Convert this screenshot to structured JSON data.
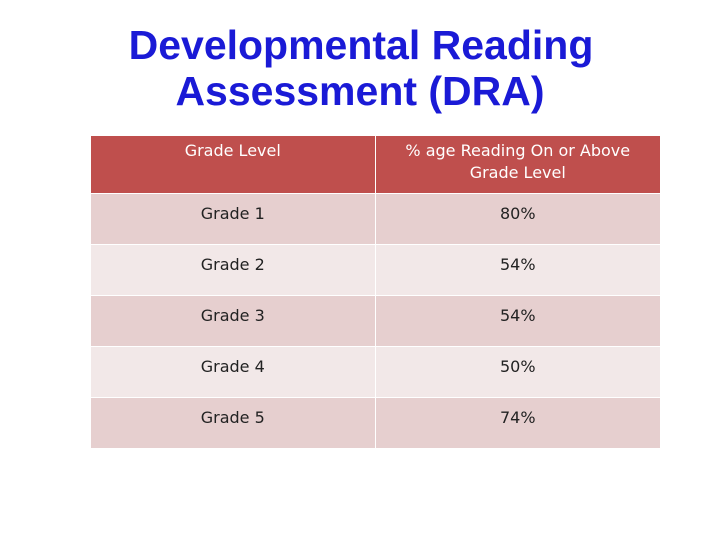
{
  "title": {
    "line1": "Developmental Reading",
    "line2": "Assessment (DRA)"
  },
  "table": {
    "headers": [
      "Grade Level",
      "% age Reading On or Above Grade Level"
    ],
    "rows": [
      {
        "grade": "Grade 1",
        "percent": "80%"
      },
      {
        "grade": "Grade 2",
        "percent": "54%"
      },
      {
        "grade": "Grade 3",
        "percent": "54%"
      },
      {
        "grade": "Grade 4",
        "percent": "50%"
      },
      {
        "grade": "Grade 5",
        "percent": "74%"
      }
    ]
  },
  "colors": {
    "title": "#1a1ad6",
    "header_bg": "#bf4f4d",
    "row_odd": "#e6cfcf",
    "row_even": "#f2e8e8"
  }
}
